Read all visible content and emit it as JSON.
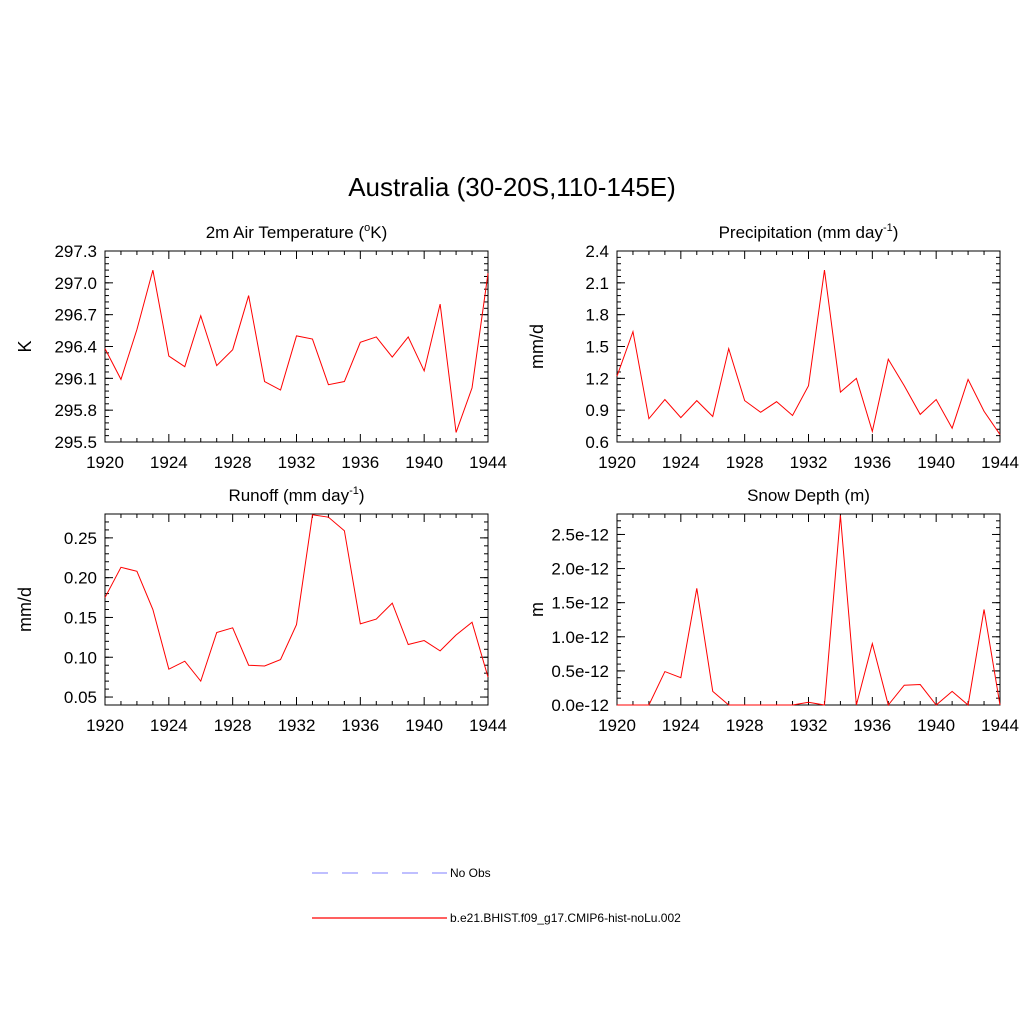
{
  "figure": {
    "title": "Australia (30-20S,110-145E)"
  },
  "legend": {
    "items": [
      {
        "label": "No Obs",
        "color": "#9999ff",
        "dash": true
      },
      {
        "label": "b.e21.BHIST.f09_g17.CMIP6-hist-noLu.002",
        "color": "#ff0000",
        "dash": false
      }
    ]
  },
  "chart_data": [
    {
      "type": "line",
      "title": "2m Air Temperature (",
      "title_sup": "o",
      "title_after": "K)",
      "ylabel": "K",
      "xlim": [
        1920,
        1944
      ],
      "ylim": [
        295.5,
        297.3
      ],
      "xticks": [
        1920,
        1924,
        1928,
        1932,
        1936,
        1940,
        1944
      ],
      "yticks": [
        295.5,
        295.8,
        296.1,
        296.4,
        296.7,
        297.0,
        297.3
      ],
      "ytick_labels": [
        "295.5",
        "295.8",
        "296.1",
        "296.4",
        "296.7",
        "297.0",
        "297.3"
      ],
      "series": [
        {
          "color": "#ff0000",
          "x": [
            1920,
            1921,
            1922,
            1923,
            1924,
            1925,
            1926,
            1927,
            1928,
            1929,
            1930,
            1931,
            1932,
            1933,
            1934,
            1935,
            1936,
            1937,
            1938,
            1939,
            1940,
            1941,
            1942,
            1943,
            1944
          ],
          "values": [
            296.38,
            296.09,
            296.56,
            297.12,
            296.31,
            296.21,
            296.69,
            296.22,
            296.37,
            296.88,
            296.07,
            295.99,
            296.5,
            296.47,
            296.04,
            296.07,
            296.44,
            296.49,
            296.3,
            296.49,
            296.17,
            296.8,
            295.59,
            296.01,
            297.09
          ]
        }
      ]
    },
    {
      "type": "line",
      "title": "Precipitation (mm day",
      "title_sup": "-1",
      "title_after": ")",
      "ylabel": "mm/d",
      "xlim": [
        1920,
        1944
      ],
      "ylim": [
        0.6,
        2.4
      ],
      "xticks": [
        1920,
        1924,
        1928,
        1932,
        1936,
        1940,
        1944
      ],
      "yticks": [
        0.6,
        0.9,
        1.2,
        1.5,
        1.8,
        2.1,
        2.4
      ],
      "ytick_labels": [
        "0.6",
        "0.9",
        "1.2",
        "1.5",
        "1.8",
        "2.1",
        "2.4"
      ],
      "series": [
        {
          "color": "#ff0000",
          "x": [
            1920,
            1921,
            1922,
            1923,
            1924,
            1925,
            1926,
            1927,
            1928,
            1929,
            1930,
            1931,
            1932,
            1933,
            1934,
            1935,
            1936,
            1937,
            1938,
            1939,
            1940,
            1941,
            1942,
            1943,
            1944
          ],
          "values": [
            1.22,
            1.64,
            0.82,
            1.0,
            0.83,
            0.99,
            0.84,
            1.48,
            0.99,
            0.88,
            0.98,
            0.85,
            1.13,
            2.22,
            1.07,
            1.2,
            0.7,
            1.38,
            1.13,
            0.86,
            1.0,
            0.73,
            1.19,
            0.89,
            0.67
          ]
        }
      ]
    },
    {
      "type": "line",
      "title": "Runoff (mm day",
      "title_sup": "-1",
      "title_after": ")",
      "ylabel": "mm/d",
      "xlim": [
        1920,
        1944
      ],
      "ylim": [
        0.04,
        0.28
      ],
      "xticks": [
        1920,
        1924,
        1928,
        1932,
        1936,
        1940,
        1944
      ],
      "yticks": [
        0.05,
        0.1,
        0.15,
        0.2,
        0.25
      ],
      "ytick_labels": [
        "0.05",
        "0.10",
        "0.15",
        "0.20",
        "0.25"
      ],
      "series": [
        {
          "color": "#ff0000",
          "x": [
            1920,
            1921,
            1922,
            1923,
            1924,
            1925,
            1926,
            1927,
            1928,
            1929,
            1930,
            1931,
            1932,
            1933,
            1934,
            1935,
            1936,
            1937,
            1938,
            1939,
            1940,
            1941,
            1942,
            1943,
            1944
          ],
          "values": [
            0.175,
            0.213,
            0.208,
            0.16,
            0.085,
            0.095,
            0.07,
            0.131,
            0.137,
            0.09,
            0.089,
            0.097,
            0.141,
            0.279,
            0.276,
            0.259,
            0.142,
            0.148,
            0.168,
            0.116,
            0.121,
            0.108,
            0.128,
            0.144,
            0.075
          ]
        }
      ]
    },
    {
      "type": "line",
      "title": "Snow Depth (m)",
      "ylabel": "m",
      "xlim": [
        1920,
        1944
      ],
      "ylim": [
        0,
        2.8
      ],
      "xticks": [
        1920,
        1924,
        1928,
        1932,
        1936,
        1940,
        1944
      ],
      "yticks": [
        0,
        0.5,
        1.0,
        1.5,
        2.0,
        2.5
      ],
      "ytick_labels": [
        "0.0e-12",
        "0.5e-12",
        "1.0e-12",
        "1.5e-12",
        "2.0e-12",
        "2.5e-12"
      ],
      "series": [
        {
          "color": "#ff0000",
          "x": [
            1920,
            1921,
            1922,
            1923,
            1924,
            1925,
            1926,
            1927,
            1928,
            1929,
            1930,
            1931,
            1932,
            1933,
            1934,
            1935,
            1936,
            1937,
            1938,
            1939,
            1940,
            1941,
            1942,
            1943,
            1944
          ],
          "values": [
            0,
            0,
            0,
            0.49,
            0.4,
            1.71,
            0.2,
            0,
            0,
            0,
            0,
            0,
            0.04,
            0,
            2.78,
            0,
            0.9,
            0,
            0.29,
            0.3,
            0,
            0.2,
            0,
            1.4,
            0
          ]
        }
      ]
    }
  ]
}
